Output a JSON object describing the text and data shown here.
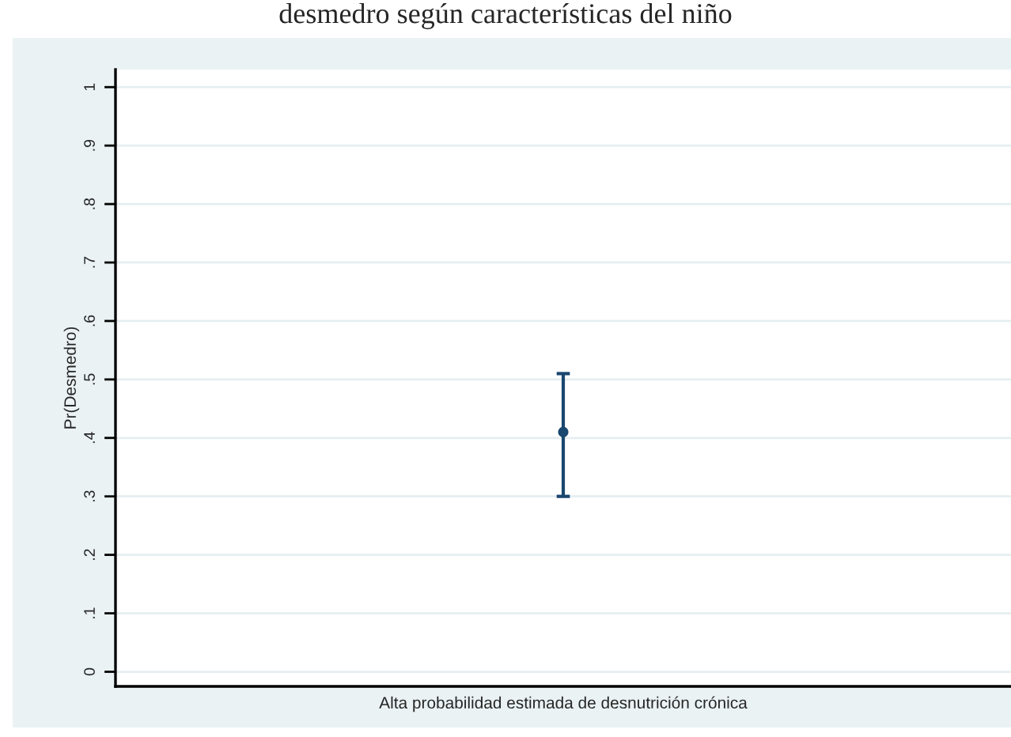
{
  "chart_data": {
    "type": "scatter",
    "title": "desmedro según características del niño",
    "xlabel": "Alta probabilidad estimada de desnutrición crónica",
    "ylabel": "Pr(Desmedro)",
    "categories": [
      null
    ],
    "series": [
      {
        "color": "#1a476f",
        "values": [
          0.41
        ],
        "errors": [
          [
            0.3,
            0.51
          ]
        ]
      }
    ],
    "ylim": [
      -0.025,
      1.03
    ],
    "yticks": [
      0,
      {
        "value": 0.1,
        "label": ".1"
      },
      {
        "value": 0.2,
        "label": ".2"
      },
      {
        "value": 0.3,
        "label": ".3"
      },
      {
        "value": 0.4,
        "label": ".4"
      },
      {
        "value": 0.5,
        "label": ".5"
      },
      {
        "value": 0.6,
        "label": ".6"
      },
      {
        "value": 0.7,
        "label": ".7"
      },
      {
        "value": 0.8,
        "label": ".8"
      },
      {
        "value": 0.9,
        "label": ".9"
      },
      1
    ],
    "grid": "y",
    "marker": "circle"
  }
}
